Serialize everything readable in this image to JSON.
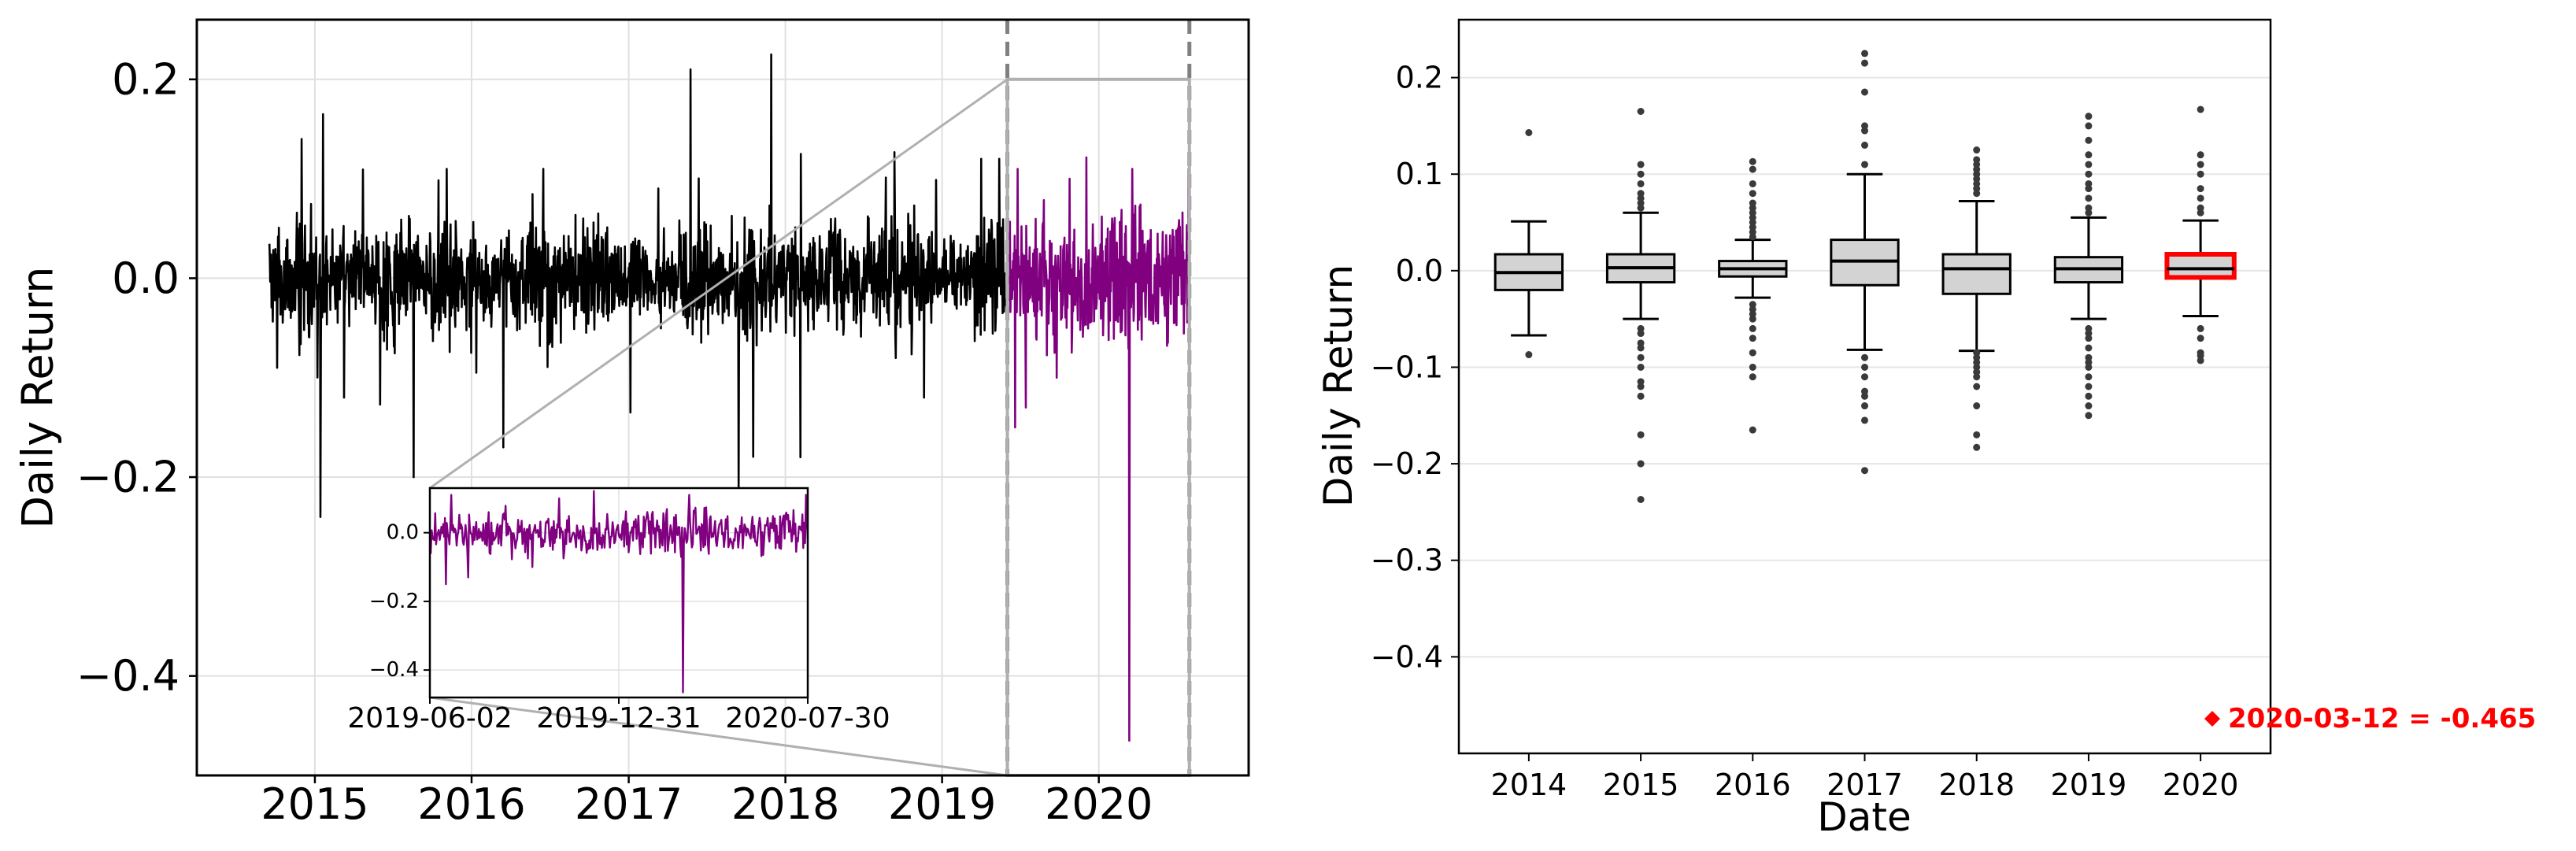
{
  "chart_data": [
    {
      "type": "line",
      "ylabel": "Daily Return",
      "xlabel": "",
      "xlim": [
        "2014-04-01",
        "2020-12-15"
      ],
      "ylim": [
        -0.5,
        0.26
      ],
      "x_ticks": [
        "2015",
        "2016",
        "2017",
        "2018",
        "2019",
        "2020"
      ],
      "y_ticks": [
        -0.4,
        -0.2,
        0.0,
        0.2
      ],
      "y_tick_labels": [
        "−0.4",
        "−0.2",
        "0.0",
        "0.2"
      ],
      "grid": true,
      "series": [
        {
          "color": "#000000",
          "x_range": [
            "2014-09-17",
            "2019-06-02"
          ],
          "spikes": [
            {
              "x": "2014-10-05",
              "y": -0.09
            },
            {
              "x": "2014-12-01",
              "y": 0.14
            },
            {
              "x": "2015-01-14",
              "y": -0.24
            },
            {
              "x": "2015-01-20",
              "y": 0.165
            },
            {
              "x": "2015-03-10",
              "y": -0.12
            },
            {
              "x": "2015-08-19",
              "y": -0.2
            },
            {
              "x": "2015-11-04",
              "y": 0.11
            },
            {
              "x": "2016-03-15",
              "y": -0.17
            },
            {
              "x": "2016-06-16",
              "y": 0.11
            },
            {
              "x": "2017-01-05",
              "y": -0.135
            },
            {
              "x": "2017-05-25",
              "y": 0.21
            },
            {
              "x": "2017-09-14",
              "y": -0.21
            },
            {
              "x": "2017-11-29",
              "y": 0.225
            },
            {
              "x": "2018-02-05",
              "y": -0.18
            },
            {
              "x": "2018-02-06",
              "y": 0.125
            },
            {
              "x": "2018-11-20",
              "y": -0.12
            },
            {
              "x": "2019-04-02",
              "y": 0.12
            },
            {
              "x": "2019-05-14",
              "y": 0.12
            }
          ]
        },
        {
          "color": "#800080",
          "x_range": [
            "2019-06-02",
            "2020-07-30"
          ],
          "spikes": [
            {
              "x": "2019-06-20",
              "y": -0.15
            },
            {
              "x": "2019-06-26",
              "y": 0.11
            },
            {
              "x": "2019-07-15",
              "y": -0.13
            },
            {
              "x": "2019-09-25",
              "y": -0.1
            },
            {
              "x": "2019-10-25",
              "y": 0.1
            },
            {
              "x": "2020-03-12",
              "y": -0.465
            },
            {
              "x": "2020-03-19",
              "y": 0.11
            },
            {
              "x": "2020-07-28",
              "y": 0.11
            }
          ]
        }
      ],
      "zoom_box": {
        "x": [
          "2019-06-02",
          "2020-07-30"
        ],
        "y": [
          -0.5,
          0.2
        ]
      }
    },
    {
      "type": "line",
      "inset": true,
      "xlim": [
        "2019-06-02",
        "2020-07-30"
      ],
      "ylim": [
        -0.48,
        0.13
      ],
      "x_ticks": [
        "2019-06-02",
        "2019-12-31",
        "2020-07-30"
      ],
      "y_ticks": [
        -0.4,
        -0.2,
        0.0
      ],
      "y_tick_labels": [
        "−0.4",
        "−0.2",
        "0.0"
      ],
      "grid": true,
      "color": "#800080"
    },
    {
      "type": "box",
      "xlabel": "Date",
      "ylabel": "Daily Return",
      "categories": [
        "2014",
        "2015",
        "2016",
        "2017",
        "2018",
        "2019",
        "2020"
      ],
      "ylim": [
        -0.5,
        0.26
      ],
      "y_ticks": [
        -0.4,
        -0.3,
        -0.2,
        -0.1,
        0.0,
        0.1,
        0.2
      ],
      "y_tick_labels": [
        "−0.4",
        "−0.3",
        "−0.2",
        "−0.1",
        "0.0",
        "0.1",
        "0.2"
      ],
      "grid": true,
      "box_fill": "#d3d3d3",
      "highlight_color": "#ff0000",
      "boxes": [
        {
          "category": "2014",
          "whisker_low": -0.067,
          "q1": -0.02,
          "median": -0.002,
          "q3": 0.017,
          "whisker_high": 0.051,
          "outliers": [
            0.143,
            -0.087
          ]
        },
        {
          "category": "2015",
          "whisker_low": -0.05,
          "q1": -0.012,
          "median": 0.003,
          "q3": 0.017,
          "whisker_high": 0.06,
          "outliers": [
            0.165,
            0.11,
            0.1,
            0.09,
            0.08,
            0.075,
            0.07,
            0.065,
            -0.06,
            -0.065,
            -0.075,
            -0.08,
            -0.09,
            -0.1,
            -0.115,
            -0.12,
            -0.13,
            -0.17,
            -0.2,
            -0.237
          ]
        },
        {
          "category": "2016",
          "whisker_low": -0.028,
          "q1": -0.006,
          "median": 0.002,
          "q3": 0.01,
          "whisker_high": 0.032,
          "outliers": [
            0.113,
            0.105,
            0.09,
            0.08,
            0.07,
            0.065,
            0.06,
            0.055,
            0.05,
            0.045,
            0.04,
            0.035,
            -0.035,
            -0.04,
            -0.045,
            -0.05,
            -0.06,
            -0.07,
            -0.085,
            -0.1,
            -0.11,
            -0.165
          ]
        },
        {
          "category": "2017",
          "whisker_low": -0.082,
          "q1": -0.015,
          "median": 0.01,
          "q3": 0.032,
          "whisker_high": 0.1,
          "outliers": [
            0.225,
            0.215,
            0.185,
            0.15,
            0.145,
            0.13,
            0.11,
            -0.09,
            -0.1,
            -0.11,
            -0.125,
            -0.13,
            -0.14,
            -0.155,
            -0.207
          ]
        },
        {
          "category": "2018",
          "whisker_low": -0.083,
          "q1": -0.024,
          "median": 0.002,
          "q3": 0.017,
          "whisker_high": 0.072,
          "outliers": [
            0.125,
            0.115,
            0.11,
            0.105,
            0.1,
            0.095,
            0.09,
            0.085,
            0.08,
            -0.085,
            -0.09,
            -0.095,
            -0.1,
            -0.105,
            -0.11,
            -0.12,
            -0.14,
            -0.17,
            -0.183
          ]
        },
        {
          "category": "2019",
          "whisker_low": -0.05,
          "q1": -0.012,
          "median": 0.002,
          "q3": 0.014,
          "whisker_high": 0.055,
          "outliers": [
            0.16,
            0.15,
            0.135,
            0.12,
            0.11,
            0.1,
            0.09,
            0.085,
            0.075,
            0.065,
            0.06,
            -0.06,
            -0.065,
            -0.07,
            -0.08,
            -0.09,
            -0.095,
            -0.1,
            -0.11,
            -0.12,
            -0.13,
            -0.14,
            -0.15
          ]
        },
        {
          "category": "2020",
          "whisker_low": -0.047,
          "q1": -0.007,
          "median": 0.002,
          "q3": 0.017,
          "whisker_high": 0.052,
          "outliers": [
            0.167,
            0.12,
            0.11,
            0.1,
            0.085,
            0.075,
            0.065,
            0.06,
            -0.06,
            -0.07,
            -0.085,
            -0.088,
            -0.093
          ],
          "highlight": true
        }
      ],
      "annotation": {
        "text": "2020-03-12 = -0.465",
        "marker": "diamond",
        "color": "#ff0000"
      }
    }
  ]
}
